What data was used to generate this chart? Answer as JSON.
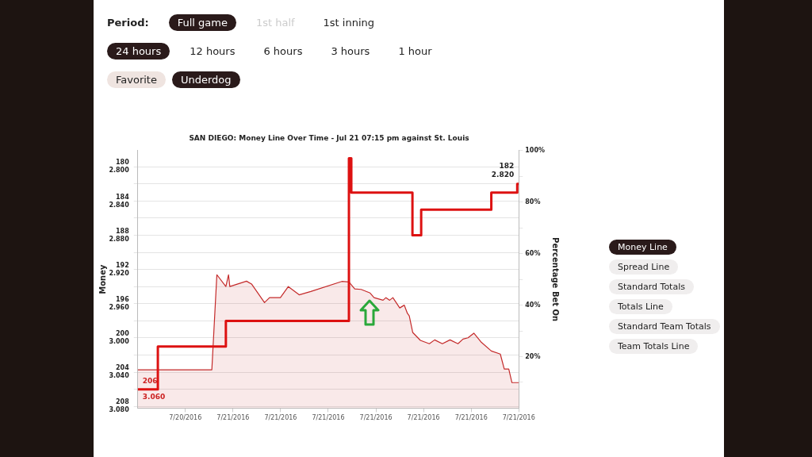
{
  "chart_data": {
    "type": "line",
    "title": "SAN DIEGO: Money Line Over Time - Jul 21 07:15 pm against St. Louis",
    "ylabel": "Money",
    "y2label": "Percentage Bet On",
    "xlim": [
      "2016-07-20T18:00",
      "2016-07-21T18:00"
    ],
    "xticks": [
      {
        "value": "2016-07-20T21:00",
        "label": "7/20/2016"
      },
      {
        "value": "2016-07-21T00:00",
        "label": "7/21/2016"
      },
      {
        "value": "2016-07-21T03:00",
        "label": "7/21/2016"
      },
      {
        "value": "2016-07-21T06:00",
        "label": "7/21/2016"
      },
      {
        "value": "2016-07-21T09:00",
        "label": "7/21/2016"
      },
      {
        "value": "2016-07-21T12:00",
        "label": "7/21/2016"
      },
      {
        "value": "2016-07-21T15:00",
        "label": "7/21/2016"
      },
      {
        "value": "2016-07-21T18:00",
        "label": "7/21/2016"
      }
    ],
    "ylim": [
      208.2,
      178.1
    ],
    "yticks": [
      180,
      {
        "value": 182,
        "label": null
      },
      184,
      {
        "value": 186,
        "label": null
      },
      188,
      {
        "value": 190,
        "label": null
      },
      192,
      {
        "value": 194,
        "label": null
      },
      196,
      {
        "value": 198,
        "label": null
      },
      200,
      {
        "value": 202,
        "label": null
      },
      204,
      {
        "value": 206,
        "label": null
      },
      208
    ],
    "y3lim": [
      3.082,
      2.781
    ],
    "y3ticks": [
      {
        "value": 2.8,
        "label": "2.800"
      },
      {
        "value": 2.84,
        "label": "2.840"
      },
      {
        "value": 2.88,
        "label": "2.880"
      },
      {
        "value": 2.92,
        "label": "2.920"
      },
      {
        "value": 2.96,
        "label": "2.960"
      },
      {
        "value": 3.0,
        "label": "3.000"
      },
      {
        "value": 3.04,
        "label": "3.040"
      },
      {
        "value": 3.08,
        "label": "3.080"
      }
    ],
    "y2lim": [
      0,
      100
    ],
    "y2ticks": [
      {
        "value": 10,
        "label": null
      },
      {
        "value": 20,
        "label": "20%"
      },
      {
        "value": 30,
        "label": null
      },
      {
        "value": 40,
        "label": "40%"
      },
      {
        "value": 50,
        "label": null
      },
      {
        "value": 60,
        "label": "60%"
      },
      {
        "value": 70,
        "label": null
      },
      {
        "value": 80,
        "label": "80%"
      },
      {
        "value": 90,
        "label": null
      },
      {
        "value": 100,
        "label": "100%"
      }
    ],
    "grid": "y",
    "legend": false,
    "marker": "none",
    "series": [
      {
        "type": "area",
        "axis": "y2",
        "color": "#c42a2a",
        "x": [
          "2016-07-20T18:00",
          "2016-07-20T22:40",
          "2016-07-20T22:59",
          "2016-07-20T23:33",
          "2016-07-20T23:43",
          "2016-07-20T23:48",
          "2016-07-21T00:51",
          "2016-07-21T01:10",
          "2016-07-21T01:59",
          "2016-07-21T02:18",
          "2016-07-21T02:59",
          "2016-07-21T03:29",
          "2016-07-21T04:10",
          "2016-07-21T04:54",
          "2016-07-21T06:51",
          "2016-07-21T07:18",
          "2016-07-21T07:40",
          "2016-07-21T08:04",
          "2016-07-21T08:38",
          "2016-07-21T08:53",
          "2016-07-21T09:27",
          "2016-07-21T09:38",
          "2016-07-21T09:52",
          "2016-07-21T10:04",
          "2016-07-21T10:30",
          "2016-07-21T10:47",
          "2016-07-21T10:59",
          "2016-07-21T11:06",
          "2016-07-21T11:19",
          "2016-07-21T11:48",
          "2016-07-21T12:22",
          "2016-07-21T12:42",
          "2016-07-21T13:11",
          "2016-07-21T13:40",
          "2016-07-21T14:10",
          "2016-07-21T14:29",
          "2016-07-21T14:48",
          "2016-07-21T15:10",
          "2016-07-21T15:37",
          "2016-07-21T16:16",
          "2016-07-21T16:50",
          "2016-07-21T17:05",
          "2016-07-21T17:22",
          "2016-07-21T17:34",
          "2016-07-21T18:00"
        ],
        "values": [
          14.9,
          14.9,
          51.8,
          47.2,
          51.8,
          47.2,
          49.3,
          48.2,
          41,
          42.9,
          42.9,
          47.2,
          44,
          45.3,
          49.2,
          49,
          46.3,
          46.1,
          44.7,
          42.9,
          41.9,
          42.9,
          41.9,
          42.9,
          38.9,
          40,
          36.8,
          35.8,
          29.4,
          26.3,
          25,
          26.5,
          25,
          26.5,
          25,
          26.8,
          27.3,
          29.1,
          25.7,
          22.2,
          21,
          15.2,
          15.2,
          9.9,
          9.9
        ]
      },
      {
        "type": "step",
        "color": "#dd1111",
        "x": [
          "2016-07-20T18:00",
          "2016-07-20T19:16",
          "2016-07-20T23:33",
          "2016-07-21T07:18",
          "2016-07-21T07:27",
          "2016-07-21T11:18",
          "2016-07-21T11:51",
          "2016-07-21T16:16",
          "2016-07-21T17:54",
          "2016-07-21T18:00"
        ],
        "values": [
          206,
          201,
          198,
          179,
          183,
          188,
          185,
          183,
          182,
          182
        ]
      }
    ],
    "annotations": [
      "Period:",
      "Full game",
      "1st half",
      "1st inning",
      "24 hours",
      "12 hours",
      "6 hours",
      "3 hours",
      "1 hour",
      "Favorite",
      "Underdog",
      "Money Line",
      "Spread Line",
      "Standard Totals",
      "Totals Line",
      "Standard Team Totals",
      "Team Totals Line",
      {
        "text": "206\n3.060",
        "x": "2016-07-20T18:00",
        "y": 206
      },
      {
        "text": "182\n2.820",
        "x": "2016-07-21T18:00",
        "y": 182
      }
    ]
  }
}
